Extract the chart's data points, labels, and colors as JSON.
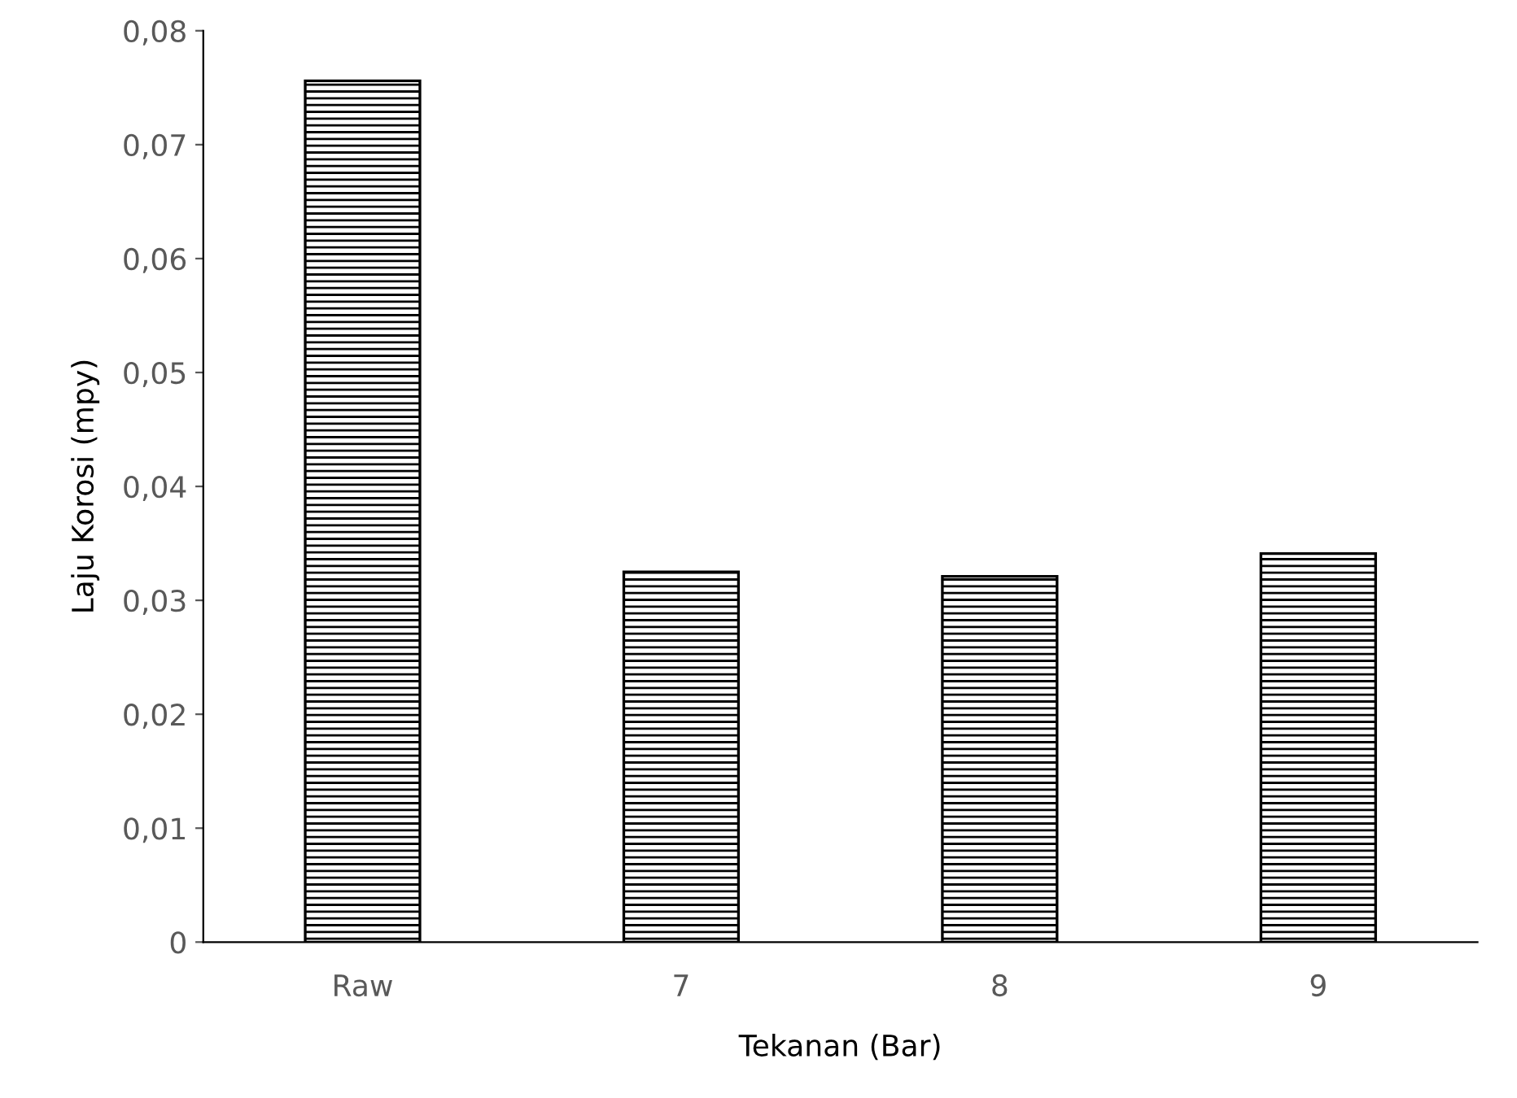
{
  "chart_data": {
    "type": "bar",
    "xlabel": "Tekanan (Bar)",
    "ylabel": "Laju Korosi (mpy)",
    "categories": [
      "Raw",
      "7",
      "8",
      "9"
    ],
    "values": [
      0.0756,
      0.0325,
      0.0321,
      0.0341
    ],
    "color": "#000000",
    "ylim": [
      0,
      0.08
    ],
    "yticks": [
      0,
      {
        "value": 0.01,
        "label": "0,01"
      },
      {
        "value": 0.02,
        "label": "0,02"
      },
      {
        "value": 0.03,
        "label": "0,03"
      },
      {
        "value": 0.04,
        "label": "0,04"
      },
      {
        "value": 0.05,
        "label": "0,05"
      },
      {
        "value": 0.06,
        "label": "0,06"
      },
      {
        "value": 0.07,
        "label": "0,07"
      },
      {
        "value": 0.08,
        "label": "0,08"
      }
    ],
    "grid": false,
    "legend": false
  }
}
